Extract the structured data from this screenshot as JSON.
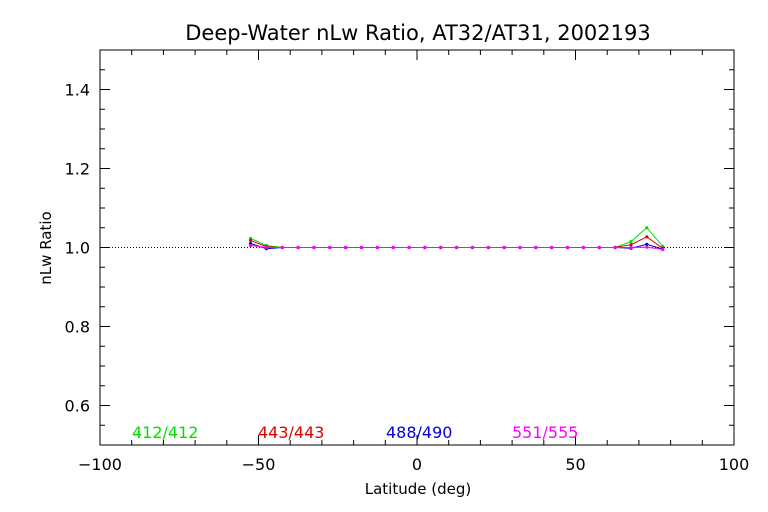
{
  "chart_data": {
    "type": "line",
    "title": "Deep-Water nLw Ratio, AT32/AT31, 2002193",
    "xlabel": "Latitude (deg)",
    "ylabel": "nLw Ratio",
    "xlim": [
      -100,
      100
    ],
    "ylim": [
      0.5,
      1.5
    ],
    "xticks": [
      -100,
      -50,
      0,
      50,
      100
    ],
    "xtick_labels": [
      "−100",
      "−50",
      "0",
      "50",
      "100"
    ],
    "yticks": [
      0.6,
      0.8,
      1.0,
      1.2,
      1.4
    ],
    "ytick_labels": [
      "0.6",
      "0.8",
      "1.0",
      "1.2",
      "1.4"
    ],
    "reference_line": 1.0,
    "grid": false,
    "legend_position": "bottom",
    "x": [
      -52.5,
      -47.5,
      -42.5,
      -37.5,
      -32.5,
      -27.5,
      -22.5,
      -17.5,
      -12.5,
      -7.5,
      -2.5,
      2.5,
      7.5,
      12.5,
      17.5,
      22.5,
      27.5,
      32.5,
      37.5,
      42.5,
      47.5,
      52.5,
      57.5,
      62.5,
      67.5,
      72.5,
      77.5
    ],
    "series": [
      {
        "name": "412/412",
        "color": "#00e000",
        "values": [
          1.023,
          1.005,
          1.0,
          1.0,
          1.0,
          1.0,
          1.0,
          1.0,
          1.0,
          1.0,
          1.0,
          1.0,
          1.0,
          1.0,
          1.0,
          1.0,
          1.0,
          1.0,
          1.0,
          1.0,
          1.0,
          1.0,
          1.0,
          1.0,
          1.015,
          1.05,
          1.003
        ]
      },
      {
        "name": "443/443",
        "color": "#e00000",
        "values": [
          1.018,
          1.002,
          1.0,
          1.0,
          1.0,
          1.0,
          1.0,
          1.0,
          1.0,
          1.0,
          1.0,
          1.0,
          1.0,
          1.0,
          1.0,
          1.0,
          1.0,
          1.0,
          1.0,
          1.0,
          1.0,
          1.0,
          1.0,
          1.0,
          1.007,
          1.027,
          0.998
        ]
      },
      {
        "name": "488/490",
        "color": "#0000e0",
        "values": [
          1.01,
          0.997,
          1.0,
          1.0,
          1.0,
          1.0,
          1.0,
          1.0,
          1.0,
          1.0,
          1.0,
          1.0,
          1.0,
          1.0,
          1.0,
          1.0,
          1.0,
          1.0,
          1.0,
          1.0,
          1.0,
          1.0,
          1.0,
          1.0,
          0.998,
          1.008,
          0.996
        ]
      },
      {
        "name": "551/555",
        "color": "#ff00ff",
        "values": [
          1.005,
          1.0,
          1.0,
          1.0,
          1.0,
          1.0,
          1.0,
          1.0,
          1.0,
          1.0,
          1.0,
          1.0,
          1.0,
          1.0,
          1.0,
          1.0,
          1.0,
          1.0,
          1.0,
          1.0,
          1.0,
          1.0,
          1.0,
          1.0,
          1.0,
          1.001,
          0.995
        ]
      }
    ]
  }
}
